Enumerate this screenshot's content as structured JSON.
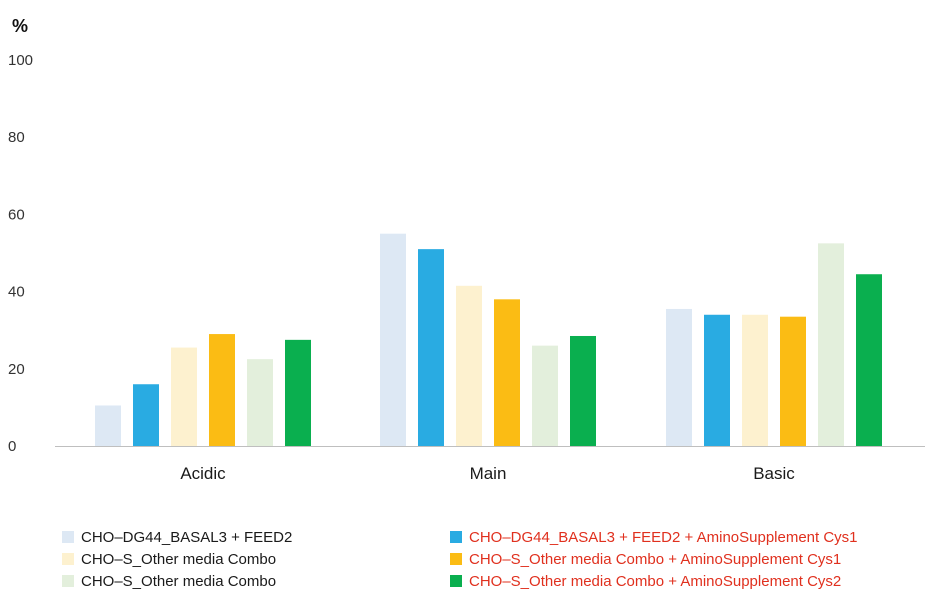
{
  "chart_data": {
    "type": "bar",
    "unit_label": "%",
    "categories": [
      "Acidic",
      "Main",
      "Basic"
    ],
    "ylim": [
      0,
      100
    ],
    "yticks": [
      0,
      20,
      40,
      60,
      80,
      100
    ],
    "grid": false,
    "legend_position": "bottom",
    "series": [
      {
        "name": "CHO–DG44_BASAL3 + FEED2",
        "color": "#dde8f4",
        "label_color": "#1a1a1a",
        "values": [
          10.5,
          55,
          35.5
        ]
      },
      {
        "name": "CHO–DG44_BASAL3 + FEED2 + AminoSupplement Cys1",
        "color": "#29abe2",
        "label_color": "#e0301e",
        "values": [
          16,
          51,
          34
        ]
      },
      {
        "name": "CHO–S_Other media Combo",
        "color": "#fdf1cf",
        "label_color": "#1a1a1a",
        "values": [
          25.5,
          41.5,
          34
        ]
      },
      {
        "name": "CHO–S_Other media Combo + AminoSupplement Cys1",
        "color": "#fbbc14",
        "label_color": "#e0301e",
        "values": [
          29,
          38,
          33.5
        ]
      },
      {
        "name": "CHO–S_Other media Combo",
        "color": "#e3efdc",
        "label_color": "#1a1a1a",
        "values": [
          22.5,
          26,
          52.5
        ]
      },
      {
        "name": "CHO–S_Other media Combo + AminoSupplement Cys2",
        "color": "#0aaf4f",
        "label_color": "#e0301e",
        "values": [
          27.5,
          28.5,
          44.5
        ]
      }
    ]
  }
}
